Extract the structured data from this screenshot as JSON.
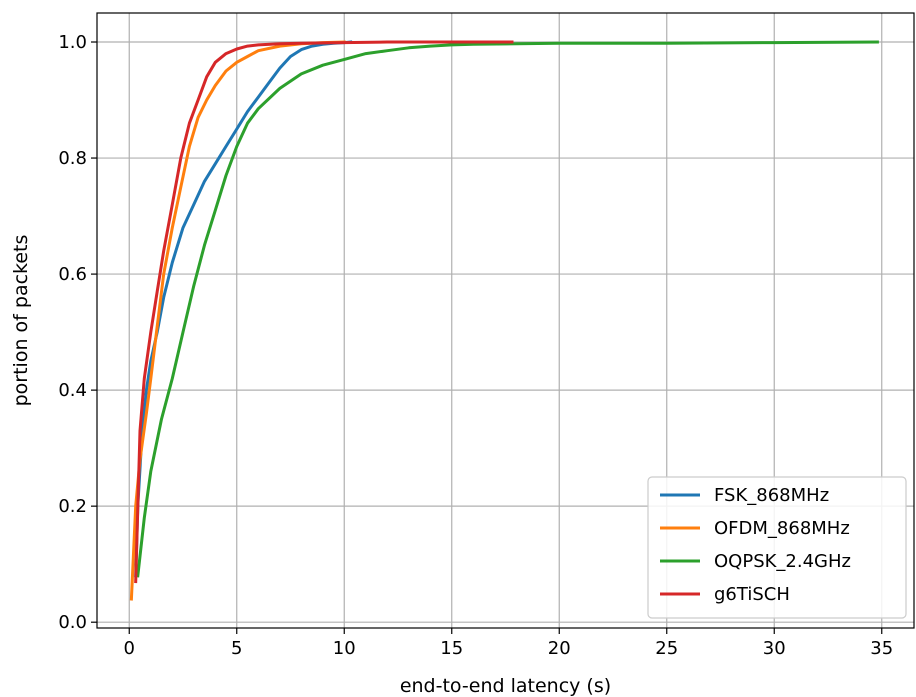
{
  "chart_data": {
    "type": "line",
    "title": "",
    "xlabel": "end-to-end latency (s)",
    "ylabel": "portion of packets",
    "xlim": [
      -1.5,
      36.5
    ],
    "ylim": [
      -0.01,
      1.05
    ],
    "xticks": [
      0,
      5,
      10,
      15,
      20,
      25,
      30,
      35
    ],
    "yticks": [
      0.0,
      0.2,
      0.4,
      0.6,
      0.8,
      1.0
    ],
    "xtick_labels": [
      "0",
      "5",
      "10",
      "15",
      "20",
      "25",
      "30",
      "35"
    ],
    "ytick_labels": [
      "0.0",
      "0.2",
      "0.4",
      "0.6",
      "0.8",
      "1.0"
    ],
    "grid": true,
    "legend_position": "lower-right",
    "series": [
      {
        "name": "FSK_868MHz",
        "color": "#1f77b4",
        "x": [
          0.3,
          0.4,
          0.6,
          0.8,
          1.0,
          1.3,
          1.6,
          2.0,
          2.5,
          3.0,
          3.5,
          4.0,
          4.5,
          5.0,
          5.5,
          6.0,
          6.5,
          7.0,
          7.5,
          8.0,
          8.5,
          9.0,
          9.5,
          10.0,
          10.3
        ],
        "y": [
          0.08,
          0.2,
          0.33,
          0.4,
          0.45,
          0.5,
          0.56,
          0.62,
          0.68,
          0.72,
          0.76,
          0.79,
          0.82,
          0.85,
          0.88,
          0.905,
          0.93,
          0.955,
          0.975,
          0.987,
          0.993,
          0.996,
          0.998,
          0.999,
          1.0
        ]
      },
      {
        "name": "OFDM_868MHz",
        "color": "#ff7f0e",
        "x": [
          0.1,
          0.3,
          0.5,
          0.8,
          1.0,
          1.3,
          1.6,
          2.0,
          2.4,
          2.8,
          3.2,
          3.6,
          4.0,
          4.5,
          5.0,
          5.5,
          6.0,
          7.0,
          8.0,
          9.0,
          10.0
        ],
        "y": [
          0.04,
          0.2,
          0.28,
          0.36,
          0.42,
          0.51,
          0.6,
          0.68,
          0.75,
          0.82,
          0.87,
          0.9,
          0.925,
          0.95,
          0.965,
          0.975,
          0.985,
          0.993,
          0.997,
          0.999,
          1.0
        ]
      },
      {
        "name": "OQPSK_2.4GHz",
        "color": "#2ca02c",
        "x": [
          0.4,
          0.7,
          1.0,
          1.5,
          2.0,
          2.5,
          3.0,
          3.5,
          4.0,
          4.5,
          5.0,
          5.5,
          6.0,
          7.0,
          8.0,
          9.0,
          10.0,
          11.0,
          12.0,
          13.0,
          14.0,
          15.0,
          16.0,
          18.0,
          20.0,
          25.0,
          30.0,
          34.8
        ],
        "y": [
          0.08,
          0.18,
          0.26,
          0.35,
          0.42,
          0.5,
          0.58,
          0.65,
          0.71,
          0.77,
          0.82,
          0.86,
          0.885,
          0.92,
          0.945,
          0.96,
          0.97,
          0.98,
          0.985,
          0.99,
          0.993,
          0.995,
          0.996,
          0.997,
          0.998,
          0.998,
          0.999,
          1.0
        ]
      },
      {
        "name": "g6TiSCH",
        "color": "#d62728",
        "x": [
          0.3,
          0.5,
          0.7,
          1.0,
          1.3,
          1.6,
          2.0,
          2.4,
          2.8,
          3.2,
          3.6,
          4.0,
          4.5,
          5.0,
          5.5,
          6.0,
          7.0,
          8.0,
          10.0,
          12.0,
          15.0,
          17.8
        ],
        "y": [
          0.07,
          0.33,
          0.42,
          0.5,
          0.57,
          0.64,
          0.72,
          0.8,
          0.86,
          0.9,
          0.94,
          0.965,
          0.98,
          0.988,
          0.993,
          0.995,
          0.997,
          0.998,
          0.999,
          1.0,
          1.0,
          1.0
        ]
      }
    ]
  }
}
